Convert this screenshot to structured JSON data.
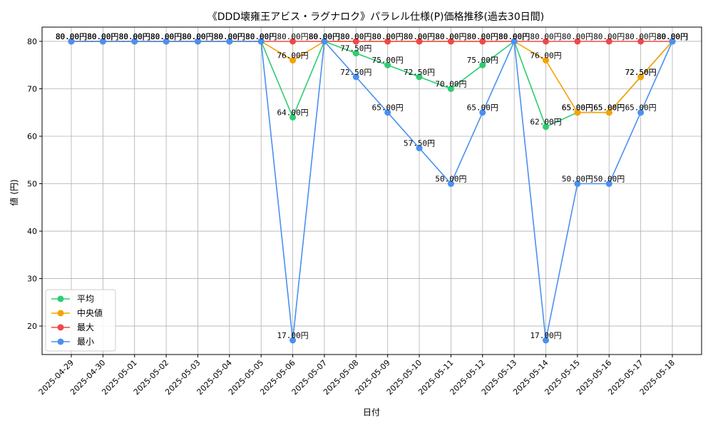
{
  "chart_data": {
    "type": "line",
    "title": "《DDD壊雍王アビス・ラグナロク》パラレル仕様(P)価格推移(過去30日間)",
    "xlabel": "日付",
    "ylabel": "値 (円)",
    "ylim": [
      14,
      83
    ],
    "yticks": [
      20,
      30,
      40,
      50,
      60,
      70,
      80
    ],
    "grid": true,
    "legend_position": "lower-left",
    "value_suffix": "円",
    "categories": [
      "2025-04-29",
      "2025-04-30",
      "2025-05-01",
      "2025-05-02",
      "2025-05-03",
      "2025-05-04",
      "2025-05-05",
      "2025-05-06",
      "2025-05-07",
      "2025-05-08",
      "2025-05-09",
      "2025-05-10",
      "2025-05-11",
      "2025-05-12",
      "2025-05-13",
      "2025-05-14",
      "2025-05-15",
      "2025-05-16",
      "2025-05-17",
      "2025-05-18"
    ],
    "series": [
      {
        "name": "平均",
        "color": "#2ecc71",
        "values": [
          80,
          80,
          80,
          80,
          80,
          80,
          80,
          64,
          80,
          77.5,
          75,
          72.5,
          70,
          75,
          80,
          62,
          65,
          65,
          72.5,
          80
        ]
      },
      {
        "name": "中央値",
        "color": "#f5a300",
        "values": [
          80,
          80,
          80,
          80,
          80,
          80,
          80,
          76,
          80,
          80,
          80,
          80,
          80,
          80,
          80,
          76,
          65,
          65,
          72.5,
          80
        ]
      },
      {
        "name": "最大",
        "color": "#f04848",
        "values": [
          80,
          80,
          80,
          80,
          80,
          80,
          80,
          80,
          80,
          80,
          80,
          80,
          80,
          80,
          80,
          80,
          80,
          80,
          80,
          80
        ]
      },
      {
        "name": "最小",
        "color": "#4a90f0",
        "values": [
          80,
          80,
          80,
          80,
          80,
          80,
          80,
          17,
          80,
          72.5,
          65,
          57.5,
          50,
          65,
          80,
          17,
          50,
          50,
          65,
          80
        ]
      }
    ]
  }
}
